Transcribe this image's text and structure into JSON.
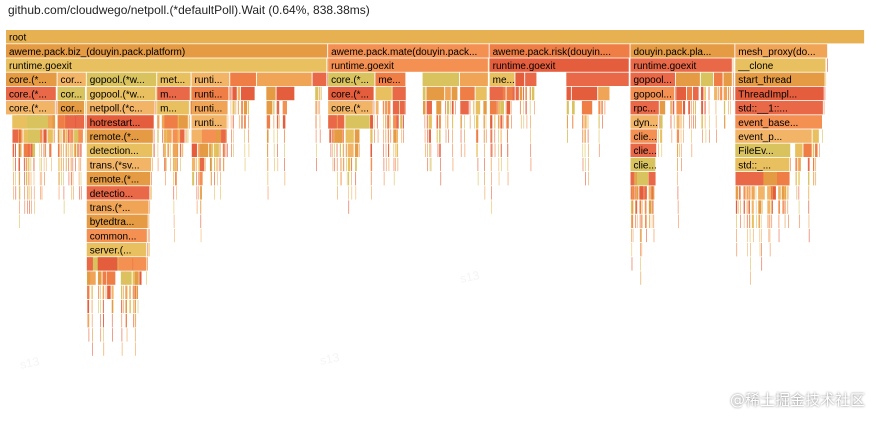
{
  "header": {
    "hover_label": "github.com/cloudwego/netpoll.(*defaultPoll).Wait (0.64%, 838.38ms)"
  },
  "watermark": {
    "text": "@稀土掘金技术社区",
    "ghost": [
      "s13",
      "s13",
      "s13"
    ]
  },
  "colors": {
    "root": "#e7b051",
    "palette": [
      "#ee7e45",
      "#f0a456",
      "#e8c05f",
      "#e45d3c",
      "#f39052",
      "#e49b43",
      "#f2b567",
      "#d9c35f",
      "#e86848"
    ]
  },
  "flamegraph": {
    "root": "root",
    "children": [
      {
        "name": "aweme.pack.biz_(douyin.pack.platform)",
        "label": "aweme.pack.biz_(douyin.pack.platform)",
        "pct": 37.5,
        "children": [
          {
            "name": "runtime.goexit",
            "label": "runtime.goexit",
            "pct": 37.4,
            "children": [
              {
                "name": "core.(*...",
                "label": "core.(*...",
                "pct": 6.0,
                "children": [
                  {
                    "name": "core.(*...",
                    "label": "core.(*...",
                    "pct": 5.9,
                    "children": [
                      {
                        "name": "core.(*...",
                        "label": "core.(*...",
                        "pct": 5.8,
                        "children": []
                      }
                    ]
                  }
                ]
              },
              {
                "name": "cor...",
                "label": "cor...",
                "pct": 3.4,
                "children": [
                  {
                    "name": "cor...",
                    "label": "cor...",
                    "pct": 3.3,
                    "children": [
                      {
                        "name": "cor...",
                        "label": "cor...",
                        "pct": 3.2,
                        "children": []
                      }
                    ]
                  }
                ]
              },
              {
                "name": "gopool.(*w...",
                "label": "gopool.(*w...",
                "pct": 8.2,
                "children": [
                  {
                    "name": "gopool.(*w...",
                    "label": "gopool.(*w...",
                    "pct": 8.1,
                    "children": [
                      {
                        "name": "netpoll.(*c...",
                        "label": "netpoll.(*c...",
                        "pct": 8.0,
                        "children": [
                          {
                            "name": "hotrestart...",
                            "label": "hotrestart...",
                            "pct": 7.9,
                            "children": [
                              {
                                "name": "remote.(*...",
                                "label": "remote.(*...",
                                "pct": 7.8,
                                "children": [
                                  {
                                    "name": "detection...",
                                    "label": "detection...",
                                    "pct": 7.7,
                                    "children": [
                                      {
                                        "name": "trans.(*sv...",
                                        "label": "trans.(*sv...",
                                        "pct": 7.6,
                                        "children": [
                                          {
                                            "name": "remote.(*...",
                                            "label": "remote.(*...",
                                            "pct": 7.5,
                                            "children": [
                                              {
                                                "name": "detectio...",
                                                "label": "detectio...",
                                                "pct": 7.4,
                                                "children": [
                                                  {
                                                    "name": "trans.(*...",
                                                    "label": "trans.(*...",
                                                    "pct": 7.3,
                                                    "children": [
                                                      {
                                                        "name": "bytedtra...",
                                                        "label": "bytedtra...",
                                                        "pct": 7.2,
                                                        "children": [
                                                          {
                                                            "name": "common...",
                                                            "label": "common...",
                                                            "pct": 7.1,
                                                            "children": [
                                                              {
                                                                "name": "server.(...",
                                                                "label": "server.(...",
                                                                "pct": 7.0,
                                                                "children": []
                                                              }
                                                            ]
                                                          }
                                                        ]
                                                      }
                                                    ]
                                                  }
                                                ]
                                              }
                                            ]
                                          }
                                        ]
                                      }
                                    ]
                                  }
                                ]
                              }
                            ]
                          }
                        ]
                      }
                    ]
                  }
                ]
              },
              {
                "name": "met...",
                "label": "met...",
                "pct": 4.0,
                "children": [
                  {
                    "name": "m...",
                    "label": "m...",
                    "pct": 3.9,
                    "children": [
                      {
                        "name": "m...",
                        "label": "m...",
                        "pct": 3.8,
                        "children": []
                      }
                    ]
                  }
                ]
              },
              {
                "name": "runti...",
                "label": "runti...",
                "pct": 4.5,
                "children": [
                  {
                    "name": "runti...",
                    "label": "runti...",
                    "pct": 4.4,
                    "children": [
                      {
                        "name": "runti...",
                        "label": "runti...",
                        "pct": 4.3,
                        "children": [
                          {
                            "name": "runti...",
                            "label": "runti...",
                            "pct": 4.2,
                            "children": []
                          }
                        ]
                      }
                    ]
                  }
                ]
              }
            ]
          }
        ]
      },
      {
        "name": "aweme.pack.mate(douyin.pack...",
        "label": "aweme.pack.mate(douyin.pack...",
        "pct": 18.8,
        "children": [
          {
            "name": "runtime.goexit",
            "label": "runtime.goexit",
            "pct": 18.7,
            "children": [
              {
                "name": "core.(*...",
                "label": "core.(*...",
                "pct": 5.5,
                "children": [
                  {
                    "name": "core.(*...",
                    "label": "core.(*...",
                    "pct": 5.4,
                    "children": [
                      {
                        "name": "core.(*...",
                        "label": "core.(*...",
                        "pct": 5.3,
                        "children": []
                      }
                    ]
                  }
                ]
              },
              {
                "name": "me...",
                "label": "me...",
                "pct": 3.6,
                "children": []
              }
            ]
          }
        ]
      },
      {
        "name": "aweme.pack.risk(douyin....",
        "label": "aweme.pack.risk(douyin....",
        "pct": 16.4,
        "children": [
          {
            "name": "runtime.goexit",
            "label": "runtime.goexit",
            "pct": 16.3,
            "children": [
              {
                "name": "me...",
                "label": "me...",
                "pct": 3.0,
                "children": []
              }
            ]
          }
        ]
      },
      {
        "name": "douyin.pack.pla...",
        "label": "douyin.pack.pla...",
        "pct": 12.2,
        "children": [
          {
            "name": "runtime.goexit",
            "label": "runtime.goexit",
            "pct": 11.9,
            "children": [
              {
                "name": "gopool...",
                "label": "gopool...",
                "pct": 5.3,
                "children": [
                  {
                    "name": "gopool...",
                    "label": "gopool...",
                    "pct": 5.2,
                    "children": [
                      {
                        "name": "rpc...",
                        "label": "rpc...",
                        "pct": 3.4,
                        "children": [
                          {
                            "name": "dyn...",
                            "label": "dyn...",
                            "pct": 3.3,
                            "children": [
                              {
                                "name": "clie...",
                                "label": "clie...",
                                "pct": 3.2,
                                "children": [
                                  {
                                    "name": "clie...",
                                    "label": "clie...",
                                    "pct": 3.1,
                                    "children": [
                                      {
                                        "name": "clie...",
                                        "label": "clie...",
                                        "pct": 3.0,
                                        "children": []
                                      }
                                    ]
                                  }
                                ]
                              }
                            ]
                          }
                        ]
                      }
                    ]
                  }
                ]
              }
            ]
          }
        ]
      },
      {
        "name": "mesh_proxy(do...",
        "label": "mesh_proxy(do...",
        "pct": 10.8,
        "children": [
          {
            "name": "__clone",
            "label": "__clone",
            "pct": 10.6,
            "children": [
              {
                "name": "start_thread",
                "label": "start_thread",
                "pct": 10.5,
                "children": [
                  {
                    "name": "ThreadImpl...",
                    "label": "ThreadImpl...",
                    "pct": 10.4,
                    "children": [
                      {
                        "name": "std::__1::...",
                        "label": "std::__1::...",
                        "pct": 10.3,
                        "children": [
                          {
                            "name": "event_base...",
                            "label": "event_base...",
                            "pct": 10.2,
                            "children": [
                              {
                                "name": "event_p...",
                                "label": "event_p...",
                                "pct": 9.0,
                                "children": [
                                  {
                                    "name": "FileEv...",
                                    "label": "FileEv...",
                                    "pct": 6.5,
                                    "children": [
                                      {
                                        "name": "std::_...",
                                        "label": "std::_...",
                                        "pct": 6.4,
                                        "children": []
                                      }
                                    ]
                                  }
                                ]
                              }
                            ]
                          }
                        ]
                      }
                    ]
                  }
                ]
              }
            ]
          }
        ]
      }
    ]
  }
}
